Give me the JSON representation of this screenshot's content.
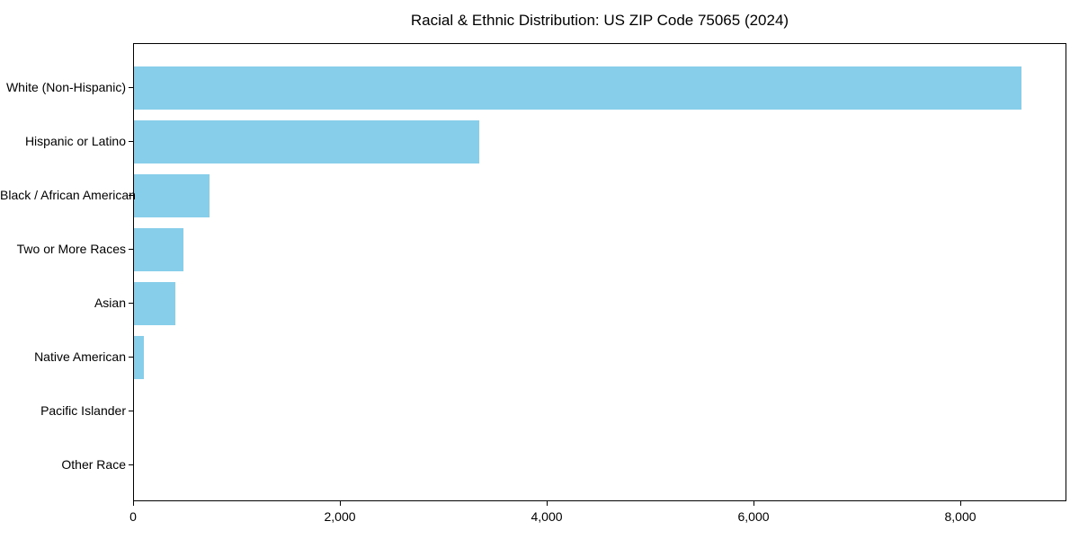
{
  "chart_data": {
    "type": "bar",
    "orientation": "horizontal",
    "title": "Racial & Ethnic Distribution: US ZIP Code 75065 (2024)",
    "xlabel": "",
    "ylabel": "",
    "categories": [
      "White (Non-Hispanic)",
      "Hispanic or Latino",
      "Black / African American",
      "Two or More Races",
      "Asian",
      "Native American",
      "Pacific Islander",
      "Other Race"
    ],
    "values": [
      8590,
      3340,
      730,
      480,
      400,
      95,
      0,
      0
    ],
    "xlim": [
      0,
      9030
    ],
    "x_ticks": [
      0,
      2000,
      4000,
      6000,
      8000
    ],
    "x_tick_labels": [
      "0",
      "2,000",
      "4,000",
      "6,000",
      "8,000"
    ],
    "grid": false,
    "legend": null,
    "bar_color": "#87CEEB"
  },
  "colors": {
    "bar": "#87CEEB",
    "spine": "#000000",
    "text": "#000000",
    "background": "#ffffff"
  }
}
